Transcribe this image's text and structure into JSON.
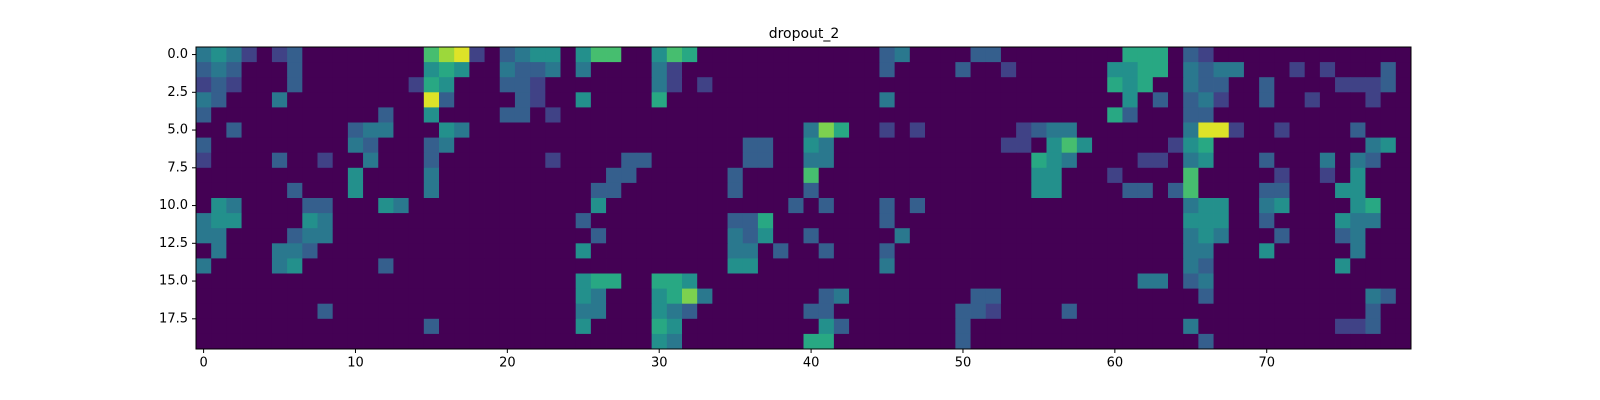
{
  "chart_data": {
    "type": "heatmap",
    "title": "dropout_2",
    "colormap": "viridis",
    "clim": [
      0,
      1
    ],
    "xlim": [
      -0.5,
      79.5
    ],
    "ylim": [
      19.5,
      -0.5
    ],
    "xticks": [
      0,
      10,
      20,
      30,
      40,
      50,
      60,
      70
    ],
    "yticks": [
      {
        "value": 0,
        "label": "0.0"
      },
      2.5,
      {
        "value": 5,
        "label": "5.0"
      },
      7.5,
      {
        "value": 10,
        "label": "10.0"
      },
      12.5,
      {
        "value": 15,
        "label": "15.0"
      },
      17.5
    ],
    "values": [
      [
        0.4,
        0.5,
        0.4,
        0.2,
        0,
        0.2,
        0.3,
        0,
        0,
        0,
        0,
        0,
        0,
        0,
        0,
        0.7,
        0.85,
        0.95,
        0.2,
        0,
        0.3,
        0.4,
        0.5,
        0.5,
        0,
        0.5,
        0.7,
        0.7,
        0,
        0,
        0.5,
        0.7,
        0.6,
        0,
        0,
        0,
        0,
        0,
        0,
        0,
        0,
        0,
        0,
        0,
        0,
        0.3,
        0.4,
        0,
        0,
        0,
        0,
        0.3,
        0.3,
        0,
        0,
        0,
        0,
        0,
        0,
        0,
        0,
        0.6,
        0.6,
        0.6,
        0,
        0.3,
        0.2,
        0,
        0,
        0,
        0,
        0,
        0,
        0,
        0,
        0,
        0,
        0,
        0,
        0
      ],
      [
        0.3,
        0.4,
        0.3,
        0,
        0,
        0,
        0.3,
        0,
        0,
        0,
        0,
        0,
        0,
        0,
        0,
        0.5,
        0.6,
        0.5,
        0,
        0,
        0.4,
        0.3,
        0.3,
        0.4,
        0,
        0.4,
        0,
        0,
        0,
        0,
        0.4,
        0.2,
        0,
        0,
        0,
        0,
        0,
        0,
        0,
        0,
        0,
        0,
        0,
        0,
        0,
        0.3,
        0,
        0,
        0,
        0,
        0.3,
        0,
        0,
        0.2,
        0,
        0,
        0,
        0,
        0,
        0,
        0.5,
        0.5,
        0.6,
        0.6,
        0,
        0.4,
        0.3,
        0.4,
        0.4,
        0,
        0,
        0,
        0.2,
        0,
        0.2,
        0,
        0,
        0,
        0.3,
        0
      ],
      [
        0.2,
        0.3,
        0.2,
        0,
        0,
        0,
        0.3,
        0,
        0,
        0,
        0,
        0,
        0,
        0,
        0.2,
        0.6,
        0.5,
        0,
        0,
        0,
        0.3,
        0.3,
        0.2,
        0,
        0,
        0,
        0,
        0,
        0,
        0,
        0.4,
        0.2,
        0,
        0.2,
        0,
        0,
        0,
        0,
        0,
        0,
        0,
        0,
        0,
        0,
        0,
        0,
        0,
        0,
        0,
        0,
        0,
        0,
        0,
        0,
        0,
        0,
        0,
        0,
        0,
        0,
        0.6,
        0.5,
        0.6,
        0,
        0,
        0.4,
        0.3,
        0.3,
        0,
        0,
        0.3,
        0,
        0,
        0,
        0,
        0.2,
        0.2,
        0.2,
        0.3,
        0
      ],
      [
        0.4,
        0.3,
        0,
        0,
        0,
        0.4,
        0,
        0,
        0,
        0,
        0,
        0,
        0,
        0,
        0,
        0.95,
        0.3,
        0,
        0,
        0,
        0,
        0.3,
        0.2,
        0,
        0,
        0.5,
        0,
        0,
        0,
        0,
        0.6,
        0,
        0,
        0,
        0,
        0,
        0,
        0,
        0,
        0,
        0,
        0,
        0,
        0,
        0,
        0.4,
        0,
        0,
        0,
        0,
        0,
        0,
        0,
        0,
        0,
        0,
        0,
        0,
        0,
        0,
        0,
        0.5,
        0,
        0.3,
        0,
        0.3,
        0.4,
        0.2,
        0,
        0,
        0.3,
        0,
        0,
        0.2,
        0,
        0,
        0,
        0.2,
        0,
        0
      ],
      [
        0.3,
        0,
        0,
        0,
        0,
        0,
        0,
        0,
        0,
        0,
        0,
        0,
        0.3,
        0,
        0,
        0.5,
        0,
        0,
        0,
        0,
        0.3,
        0.3,
        0,
        0.2,
        0,
        0,
        0,
        0,
        0,
        0,
        0,
        0,
        0,
        0,
        0,
        0,
        0,
        0,
        0,
        0,
        0,
        0,
        0,
        0,
        0,
        0,
        0,
        0,
        0,
        0,
        0,
        0,
        0,
        0,
        0,
        0,
        0,
        0,
        0,
        0,
        0.6,
        0.3,
        0,
        0,
        0,
        0.3,
        0.3,
        0,
        0,
        0,
        0,
        0,
        0,
        0,
        0,
        0,
        0,
        0,
        0,
        0
      ],
      [
        0,
        0,
        0.3,
        0,
        0,
        0,
        0,
        0,
        0,
        0,
        0.3,
        0.4,
        0.4,
        0,
        0,
        0,
        0.5,
        0.4,
        0,
        0,
        0,
        0,
        0,
        0,
        0,
        0,
        0,
        0,
        0,
        0,
        0,
        0,
        0,
        0,
        0,
        0,
        0,
        0,
        0,
        0,
        0.4,
        0.8,
        0.6,
        0,
        0,
        0.2,
        0,
        0.2,
        0,
        0,
        0,
        0,
        0,
        0,
        0.2,
        0.3,
        0.4,
        0.4,
        0,
        0,
        0,
        0,
        0,
        0,
        0,
        0.4,
        0.95,
        0.95,
        0.2,
        0,
        0,
        0.2,
        0,
        0,
        0,
        0,
        0.3,
        0,
        0,
        0
      ],
      [
        0.3,
        0,
        0,
        0,
        0,
        0,
        0,
        0,
        0,
        0,
        0.4,
        0.3,
        0,
        0,
        0,
        0.3,
        0.4,
        0,
        0,
        0,
        0,
        0,
        0,
        0,
        0,
        0,
        0,
        0,
        0,
        0,
        0,
        0,
        0,
        0,
        0,
        0,
        0.3,
        0.3,
        0,
        0,
        0.5,
        0.4,
        0,
        0,
        0,
        0,
        0,
        0,
        0,
        0,
        0,
        0,
        0,
        0.2,
        0.2,
        0,
        0.5,
        0.7,
        0.5,
        0,
        0,
        0,
        0,
        0,
        0.2,
        0.5,
        0.6,
        0,
        0,
        0,
        0,
        0,
        0,
        0,
        0,
        0,
        0,
        0.4,
        0.5,
        0
      ],
      [
        0.2,
        0,
        0,
        0,
        0,
        0.3,
        0,
        0,
        0.2,
        0,
        0,
        0.4,
        0,
        0,
        0,
        0.3,
        0,
        0,
        0,
        0,
        0,
        0,
        0,
        0.2,
        0,
        0,
        0,
        0,
        0.3,
        0.3,
        0,
        0,
        0,
        0,
        0,
        0,
        0.3,
        0.3,
        0,
        0,
        0.4,
        0.4,
        0,
        0,
        0,
        0,
        0,
        0,
        0,
        0,
        0,
        0,
        0,
        0,
        0,
        0.6,
        0.5,
        0.4,
        0,
        0,
        0,
        0,
        0.2,
        0.2,
        0,
        0.4,
        0.5,
        0,
        0,
        0,
        0.3,
        0,
        0,
        0,
        0.4,
        0,
        0.4,
        0.3,
        0,
        0
      ],
      [
        0,
        0,
        0,
        0,
        0,
        0,
        0,
        0,
        0,
        0,
        0.5,
        0,
        0,
        0,
        0,
        0.4,
        0,
        0,
        0,
        0,
        0,
        0,
        0,
        0,
        0,
        0,
        0,
        0.3,
        0.3,
        0,
        0,
        0,
        0,
        0,
        0,
        0.3,
        0,
        0,
        0,
        0,
        0.7,
        0,
        0,
        0,
        0,
        0,
        0,
        0,
        0,
        0,
        0,
        0,
        0,
        0,
        0,
        0.5,
        0.5,
        0,
        0,
        0,
        0.2,
        0,
        0,
        0,
        0,
        0.7,
        0,
        0,
        0,
        0,
        0,
        0.2,
        0,
        0,
        0.2,
        0,
        0.5,
        0,
        0,
        0
      ],
      [
        0,
        0,
        0,
        0,
        0,
        0,
        0.3,
        0,
        0,
        0,
        0.5,
        0,
        0,
        0,
        0,
        0.4,
        0,
        0,
        0,
        0,
        0,
        0,
        0,
        0,
        0,
        0,
        0.3,
        0.3,
        0,
        0,
        0,
        0,
        0,
        0,
        0,
        0.3,
        0,
        0,
        0,
        0,
        0.3,
        0,
        0,
        0,
        0,
        0,
        0,
        0,
        0,
        0,
        0,
        0,
        0,
        0,
        0,
        0.5,
        0.5,
        0,
        0,
        0,
        0,
        0.3,
        0.3,
        0,
        0.3,
        0.7,
        0,
        0,
        0,
        0,
        0.3,
        0.3,
        0,
        0,
        0,
        0.5,
        0.5,
        0,
        0,
        0
      ],
      [
        0,
        0.5,
        0.4,
        0,
        0,
        0,
        0,
        0.3,
        0.3,
        0,
        0,
        0,
        0.5,
        0.4,
        0,
        0,
        0,
        0,
        0,
        0,
        0,
        0,
        0,
        0,
        0,
        0,
        0.5,
        0,
        0,
        0,
        0,
        0,
        0,
        0,
        0,
        0,
        0,
        0,
        0,
        0.3,
        0,
        0.3,
        0,
        0,
        0,
        0.3,
        0,
        0.3,
        0,
        0,
        0,
        0,
        0,
        0,
        0,
        0,
        0,
        0,
        0,
        0,
        0,
        0,
        0,
        0,
        0,
        0.4,
        0.5,
        0.5,
        0,
        0,
        0.4,
        0.5,
        0,
        0,
        0,
        0,
        0.5,
        0.6,
        0,
        0
      ],
      [
        0.4,
        0.5,
        0.5,
        0,
        0,
        0,
        0,
        0.5,
        0.4,
        0,
        0,
        0,
        0,
        0,
        0,
        0,
        0,
        0,
        0,
        0,
        0,
        0,
        0,
        0,
        0,
        0.3,
        0,
        0,
        0,
        0,
        0,
        0,
        0,
        0,
        0,
        0.3,
        0.3,
        0.6,
        0,
        0,
        0,
        0,
        0,
        0,
        0,
        0.3,
        0,
        0,
        0,
        0,
        0,
        0,
        0,
        0,
        0,
        0,
        0,
        0,
        0,
        0,
        0,
        0,
        0,
        0,
        0,
        0.5,
        0.5,
        0.5,
        0,
        0,
        0.3,
        0,
        0,
        0,
        0,
        0.5,
        0.4,
        0.4,
        0,
        0
      ],
      [
        0.4,
        0.4,
        0,
        0,
        0,
        0,
        0.3,
        0.4,
        0.4,
        0,
        0,
        0,
        0,
        0,
        0,
        0,
        0,
        0,
        0,
        0,
        0,
        0,
        0,
        0,
        0,
        0,
        0.3,
        0,
        0,
        0,
        0,
        0,
        0,
        0,
        0,
        0.4,
        0.3,
        0.5,
        0,
        0,
        0.3,
        0,
        0,
        0,
        0,
        0,
        0.4,
        0,
        0,
        0,
        0,
        0,
        0,
        0,
        0,
        0,
        0,
        0,
        0,
        0,
        0,
        0,
        0,
        0,
        0,
        0.4,
        0.5,
        0.4,
        0,
        0,
        0,
        0.3,
        0,
        0,
        0,
        0.3,
        0.4,
        0,
        0,
        0
      ],
      [
        0,
        0.4,
        0,
        0,
        0,
        0.4,
        0.4,
        0.3,
        0,
        0,
        0,
        0,
        0,
        0,
        0,
        0,
        0,
        0,
        0,
        0,
        0,
        0,
        0,
        0,
        0,
        0.5,
        0,
        0,
        0,
        0,
        0,
        0,
        0,
        0,
        0,
        0.4,
        0.4,
        0,
        0.3,
        0,
        0,
        0.3,
        0,
        0,
        0,
        0.3,
        0,
        0,
        0,
        0,
        0,
        0,
        0,
        0,
        0,
        0,
        0,
        0,
        0,
        0,
        0,
        0,
        0,
        0,
        0,
        0.4,
        0.4,
        0,
        0,
        0,
        0.5,
        0,
        0,
        0,
        0,
        0,
        0.4,
        0,
        0,
        0
      ],
      [
        0.4,
        0,
        0,
        0,
        0,
        0.4,
        0.5,
        0,
        0,
        0,
        0,
        0,
        0.3,
        0,
        0,
        0,
        0,
        0,
        0,
        0,
        0,
        0,
        0,
        0,
        0,
        0,
        0,
        0,
        0,
        0,
        0,
        0,
        0,
        0,
        0,
        0.5,
        0.5,
        0,
        0,
        0,
        0,
        0,
        0,
        0,
        0,
        0.4,
        0,
        0,
        0,
        0,
        0,
        0,
        0,
        0,
        0,
        0,
        0,
        0,
        0,
        0,
        0,
        0,
        0,
        0,
        0,
        0.4,
        0.3,
        0,
        0,
        0,
        0,
        0,
        0,
        0,
        0,
        0.5,
        0,
        0,
        0,
        0
      ],
      [
        0,
        0,
        0,
        0,
        0,
        0,
        0,
        0,
        0,
        0,
        0,
        0,
        0,
        0,
        0,
        0,
        0,
        0,
        0,
        0,
        0,
        0,
        0,
        0,
        0,
        0.5,
        0.6,
        0.6,
        0,
        0,
        0.6,
        0.6,
        0.5,
        0,
        0,
        0,
        0,
        0,
        0,
        0,
        0,
        0,
        0,
        0,
        0,
        0,
        0,
        0,
        0,
        0,
        0,
        0,
        0,
        0,
        0,
        0,
        0,
        0,
        0,
        0,
        0,
        0,
        0.4,
        0.4,
        0,
        0.3,
        0.4,
        0,
        0,
        0,
        0,
        0,
        0,
        0,
        0,
        0,
        0,
        0,
        0,
        0
      ],
      [
        0,
        0,
        0,
        0,
        0,
        0,
        0,
        0,
        0,
        0,
        0,
        0,
        0,
        0,
        0,
        0,
        0,
        0,
        0,
        0,
        0,
        0,
        0,
        0,
        0,
        0.5,
        0.4,
        0,
        0,
        0,
        0.5,
        0.6,
        0.8,
        0.4,
        0,
        0,
        0,
        0,
        0,
        0,
        0,
        0.3,
        0.4,
        0,
        0,
        0,
        0,
        0,
        0,
        0,
        0,
        0.3,
        0.3,
        0,
        0,
        0,
        0,
        0,
        0,
        0,
        0,
        0,
        0,
        0,
        0,
        0,
        0.3,
        0,
        0,
        0,
        0,
        0,
        0,
        0,
        0,
        0,
        0,
        0.4,
        0.3,
        0
      ],
      [
        0,
        0,
        0,
        0,
        0,
        0,
        0,
        0,
        0.3,
        0,
        0,
        0,
        0,
        0,
        0,
        0,
        0,
        0,
        0,
        0,
        0,
        0,
        0,
        0,
        0,
        0.4,
        0.4,
        0,
        0,
        0,
        0.5,
        0.4,
        0.3,
        0,
        0,
        0,
        0,
        0,
        0,
        0,
        0.3,
        0.3,
        0,
        0,
        0,
        0,
        0,
        0,
        0,
        0,
        0.3,
        0.3,
        0.2,
        0,
        0,
        0,
        0,
        0.3,
        0,
        0,
        0,
        0,
        0,
        0,
        0,
        0,
        0,
        0,
        0,
        0,
        0,
        0,
        0,
        0,
        0,
        0,
        0,
        0.3,
        0,
        0
      ],
      [
        0,
        0,
        0,
        0,
        0,
        0,
        0,
        0,
        0,
        0,
        0,
        0,
        0,
        0,
        0,
        0.3,
        0,
        0,
        0,
        0,
        0,
        0,
        0,
        0,
        0,
        0.5,
        0,
        0,
        0,
        0,
        0.6,
        0.5,
        0,
        0,
        0,
        0,
        0,
        0,
        0,
        0,
        0,
        0.5,
        0.3,
        0,
        0,
        0,
        0,
        0,
        0,
        0,
        0.3,
        0,
        0,
        0,
        0,
        0,
        0,
        0,
        0,
        0,
        0,
        0,
        0,
        0,
        0,
        0.4,
        0,
        0,
        0,
        0,
        0,
        0,
        0,
        0,
        0,
        0.2,
        0.2,
        0.3,
        0,
        0
      ],
      [
        0,
        0,
        0,
        0,
        0,
        0,
        0,
        0,
        0,
        0,
        0,
        0,
        0,
        0,
        0,
        0,
        0,
        0,
        0,
        0,
        0,
        0,
        0,
        0,
        0,
        0,
        0,
        0,
        0,
        0,
        0.5,
        0.4,
        0,
        0,
        0,
        0,
        0,
        0,
        0,
        0,
        0.6,
        0.6,
        0,
        0,
        0,
        0,
        0,
        0,
        0,
        0,
        0.3,
        0,
        0,
        0,
        0,
        0,
        0,
        0,
        0,
        0,
        0,
        0,
        0,
        0,
        0,
        0,
        0.3,
        0,
        0,
        0,
        0,
        0,
        0,
        0,
        0,
        0,
        0,
        0,
        0,
        0
      ]
    ]
  }
}
